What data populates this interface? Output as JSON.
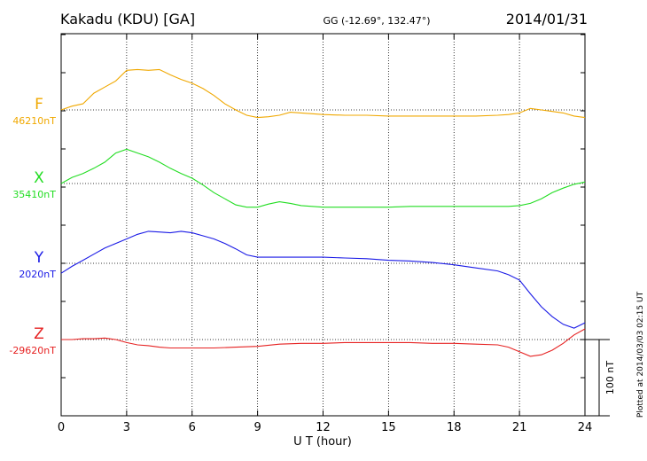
{
  "header": {
    "station": "Kakadu (KDU)  [GA]",
    "coords": "GG (-12.69°, 132.47°)",
    "date": "2014/01/31"
  },
  "footer_note": "Plotted at 2014/03/03 02:15 UT",
  "chart_data": {
    "type": "line",
    "xlabel": "U T (hour)",
    "xlim": [
      0,
      24
    ],
    "xticks": [
      "0",
      "3",
      "6",
      "9",
      "12",
      "15",
      "18",
      "21",
      "24"
    ],
    "grid": true,
    "scale_bar": {
      "label": "100 nT",
      "value_nT": 100
    },
    "series": [
      {
        "name": "F",
        "baseline_label": "46210nT",
        "baseline": 46210,
        "color": "#f0a800",
        "x": [
          0,
          0.5,
          1,
          1.5,
          2,
          2.5,
          3,
          3.5,
          4,
          4.5,
          5,
          5.5,
          6,
          6.5,
          7,
          7.5,
          8,
          8.5,
          9,
          9.5,
          10,
          10.5,
          11,
          12,
          13,
          14,
          15,
          16,
          17,
          18,
          19,
          20,
          20.5,
          21,
          21.5,
          22,
          22.5,
          23,
          23.5,
          24
        ],
        "values": [
          46210,
          46215,
          46218,
          46232,
          46240,
          46248,
          46262,
          46263,
          46262,
          46263,
          46256,
          46250,
          46245,
          46238,
          46229,
          46218,
          46210,
          46203,
          46200,
          46201,
          46203,
          46207,
          46206,
          46204,
          46203,
          46203,
          46202,
          46202,
          46202,
          46202,
          46202,
          46203,
          46204,
          46206,
          46212,
          46210,
          46208,
          46206,
          46202,
          46200
        ]
      },
      {
        "name": "X",
        "baseline_label": "35410nT",
        "baseline": 35410,
        "color": "#22dd22",
        "x": [
          0,
          0.5,
          1,
          1.5,
          2,
          2.5,
          3,
          3.5,
          4,
          4.5,
          5,
          5.5,
          6,
          6.5,
          7,
          7.5,
          8,
          8.5,
          9,
          9.5,
          10,
          10.5,
          11,
          12,
          13,
          14,
          15,
          16,
          17,
          18,
          19,
          20,
          20.5,
          21,
          21.5,
          22,
          22.5,
          23,
          23.5,
          24
        ],
        "values": [
          35410,
          35418,
          35423,
          35430,
          35438,
          35450,
          35455,
          35450,
          35445,
          35438,
          35430,
          35423,
          35417,
          35408,
          35398,
          35390,
          35382,
          35379,
          35379,
          35383,
          35386,
          35384,
          35381,
          35379,
          35379,
          35379,
          35379,
          35380,
          35380,
          35380,
          35380,
          35380,
          35380,
          35381,
          35384,
          35390,
          35398,
          35404,
          35409,
          35412
        ]
      },
      {
        "name": "Y",
        "baseline_label": "2020nT",
        "baseline": 2020,
        "color": "#1a1ae6",
        "x": [
          0,
          0.5,
          1,
          1.5,
          2,
          2.5,
          3,
          3.5,
          4,
          4.5,
          5,
          5.5,
          6,
          6.5,
          7,
          7.5,
          8,
          8.5,
          9,
          10,
          11,
          12,
          13,
          14,
          15,
          16,
          17,
          18,
          19,
          20,
          20.5,
          21,
          21.5,
          22,
          22.5,
          23,
          23.5,
          24
        ],
        "values": [
          2007,
          2016,
          2024,
          2032,
          2040,
          2046,
          2052,
          2058,
          2062,
          2061,
          2060,
          2062,
          2060,
          2056,
          2052,
          2046,
          2039,
          2031,
          2028,
          2028,
          2028,
          2028,
          2027,
          2026,
          2024,
          2023,
          2021,
          2018,
          2014,
          2010,
          2005,
          1998,
          1980,
          1963,
          1950,
          1940,
          1935,
          1942
        ]
      },
      {
        "name": "Z",
        "baseline_label": "-29620nT",
        "baseline": -29620,
        "color": "#e62222",
        "x": [
          0,
          0.5,
          1,
          1.5,
          2,
          2.5,
          3,
          3.5,
          4,
          4.5,
          5,
          5.5,
          6,
          7,
          8,
          9,
          10,
          11,
          12,
          13,
          14,
          15,
          16,
          17,
          18,
          19,
          20,
          20.5,
          21,
          21.5,
          22,
          22.5,
          23,
          23.5,
          24
        ],
        "values": [
          -29620,
          -29620,
          -29619,
          -29619,
          -29618,
          -29620,
          -29624,
          -29627,
          -29628,
          -29630,
          -29631,
          -29631,
          -29631,
          -29631,
          -29630,
          -29629,
          -29626,
          -29625,
          -29625,
          -29624,
          -29624,
          -29624,
          -29624,
          -29625,
          -29625,
          -29626,
          -29627,
          -29630,
          -29636,
          -29642,
          -29640,
          -29634,
          -29625,
          -29614,
          -29606
        ]
      }
    ]
  }
}
